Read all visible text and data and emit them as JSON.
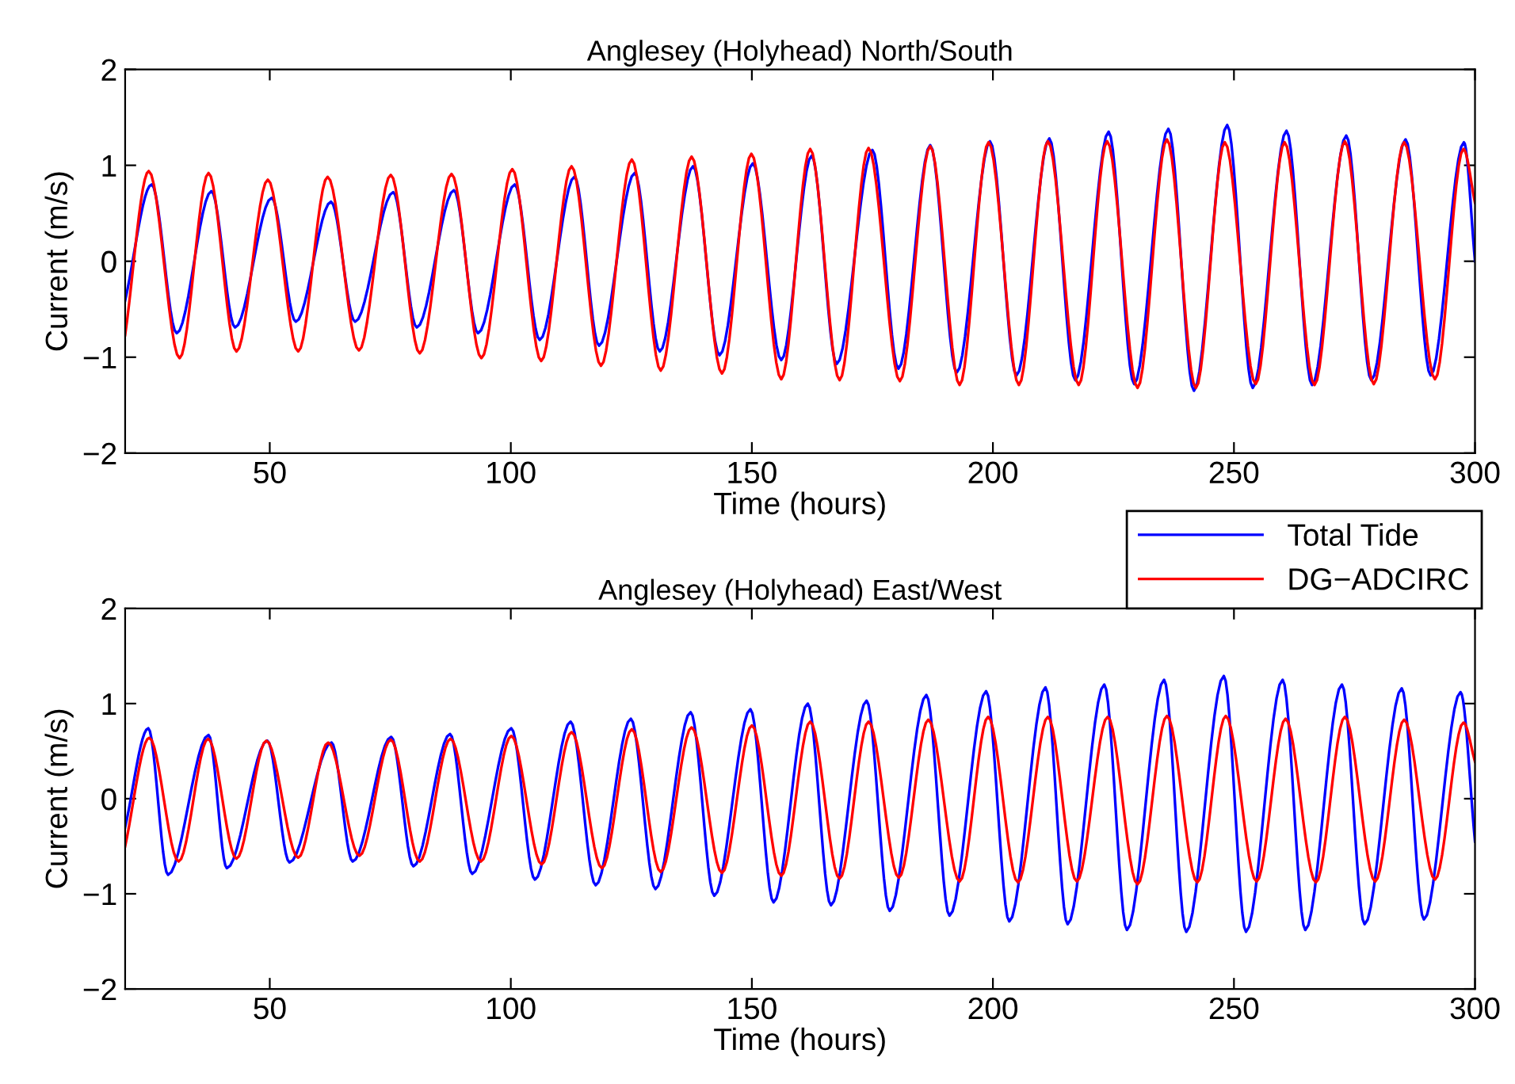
{
  "chart_data": [
    {
      "type": "line",
      "title": "Anglesey (Holyhead) North/South",
      "xlabel": "Time (hours)",
      "ylabel": "Current (m/s)",
      "xlim": [
        20,
        300
      ],
      "ylim": [
        -2,
        2
      ],
      "xticks": [
        50,
        100,
        150,
        200,
        250,
        300
      ],
      "yticks": [
        -2,
        -1,
        0,
        1,
        2
      ],
      "grid": false,
      "legend": false,
      "series": [
        {
          "color": "#0000ff",
          "x": [
            20,
            25.5,
            30.7,
            37.9,
            42.8,
            50.4,
            55.4,
            62.7,
            67.7,
            75.6,
            80.5,
            88.2,
            93.2,
            100.8,
            106.0,
            113.2,
            118.3,
            125.7,
            130.9,
            137.8,
            143.3,
            150.2,
            156.1,
            162.4,
            167.6,
            175.0,
            180.4,
            187.0,
            192.5,
            199.4,
            204.9,
            211.7,
            217.1,
            224.0,
            229.3,
            236.4,
            241.7,
            248.6,
            253.9,
            260.9,
            266.2,
            273.3,
            278.5,
            285.6,
            290.8,
            297.7,
            300
          ],
          "values": [
            -0.41,
            0.8,
            -0.75,
            0.73,
            -0.69,
            0.66,
            -0.63,
            0.62,
            -0.63,
            0.72,
            -0.69,
            0.74,
            -0.75,
            0.8,
            -0.82,
            0.88,
            -0.88,
            0.92,
            -0.94,
            0.99,
            -0.98,
            1.02,
            -1.03,
            1.1,
            -1.07,
            1.16,
            -1.12,
            1.21,
            -1.16,
            1.25,
            -1.19,
            1.28,
            -1.24,
            1.35,
            -1.28,
            1.38,
            -1.35,
            1.42,
            -1.32,
            1.36,
            -1.29,
            1.31,
            -1.24,
            1.27,
            -1.19,
            1.24,
            0.0
          ]
        },
        {
          "color": "#ff0000",
          "x": [
            20,
            24.9,
            31.3,
            37.3,
            43.1,
            49.6,
            55.9,
            62.0,
            68.5,
            75.1,
            81.1,
            87.7,
            93.9,
            100.3,
            106.3,
            112.6,
            118.7,
            125.1,
            131.1,
            137.5,
            143.8,
            149.9,
            156.1,
            162.1,
            168.2,
            174.2,
            180.7,
            187.0,
            193.1,
            199.1,
            205.4,
            211.4,
            217.8,
            223.7,
            230.0,
            236.1,
            242.1,
            248.1,
            254.5,
            260.5,
            266.7,
            273.0,
            279.0,
            285.3,
            291.7,
            297.6,
            300
          ],
          "values": [
            -0.77,
            0.94,
            -1.01,
            0.92,
            -0.94,
            0.85,
            -0.94,
            0.88,
            -0.93,
            0.9,
            -0.96,
            0.91,
            -1.01,
            0.96,
            -1.04,
            0.99,
            -1.09,
            1.06,
            -1.14,
            1.09,
            -1.17,
            1.12,
            -1.23,
            1.17,
            -1.24,
            1.18,
            -1.25,
            1.2,
            -1.29,
            1.24,
            -1.29,
            1.25,
            -1.29,
            1.25,
            -1.32,
            1.27,
            -1.32,
            1.24,
            -1.28,
            1.24,
            -1.29,
            1.25,
            -1.28,
            1.24,
            -1.23,
            1.17,
            0.61
          ]
        }
      ]
    },
    {
      "type": "line",
      "title": "Anglesey (Holyhead) East/West",
      "xlabel": "Time (hours)",
      "ylabel": "Current (m/s)",
      "xlim": [
        20,
        300
      ],
      "ylim": [
        -2,
        2
      ],
      "xticks": [
        50,
        100,
        150,
        200,
        250,
        300
      ],
      "yticks": [
        -2,
        -1,
        0,
        1,
        2
      ],
      "grid": false,
      "legend": "top right",
      "series": [
        {
          "name": "Total Tide",
          "color": "#0000ff",
          "x": [
            20,
            24.8,
            28.9,
            37.3,
            41.1,
            49.5,
            54.1,
            62.8,
            67.2,
            75.2,
            79.8,
            87.4,
            92.0,
            100.1,
            105.0,
            112.4,
            117.6,
            124.9,
            130.0,
            137.3,
            142.2,
            149.7,
            154.5,
            161.6,
            166.4,
            173.8,
            178.6,
            186.2,
            191.0,
            198.6,
            203.4,
            210.9,
            215.5,
            223.1,
            227.8,
            235.5,
            240.1,
            247.9,
            252.5,
            260.1,
            264.8,
            272.4,
            277.1,
            284.8,
            289.4,
            297.0,
            300
          ],
          "values": [
            -0.3,
            0.74,
            -0.8,
            0.67,
            -0.73,
            0.61,
            -0.67,
            0.59,
            -0.66,
            0.65,
            -0.71,
            0.68,
            -0.79,
            0.74,
            -0.85,
            0.81,
            -0.91,
            0.84,
            -0.95,
            0.91,
            -1.02,
            0.94,
            -1.09,
            1.0,
            -1.12,
            1.03,
            -1.18,
            1.09,
            -1.23,
            1.13,
            -1.29,
            1.17,
            -1.32,
            1.2,
            -1.38,
            1.25,
            -1.4,
            1.29,
            -1.4,
            1.25,
            -1.38,
            1.2,
            -1.32,
            1.16,
            -1.27,
            1.12,
            -0.45
          ]
        },
        {
          "name": "DG−ADCIRC",
          "color": "#ff0000",
          "x": [
            20,
            25.0,
            31.1,
            37.2,
            43.1,
            49.3,
            55.9,
            62.1,
            68.6,
            75.1,
            81.1,
            87.5,
            93.8,
            100.1,
            106.4,
            112.6,
            118.9,
            125.1,
            131.1,
            137.5,
            143.8,
            150.0,
            156.1,
            162.1,
            168.2,
            174.2,
            180.5,
            186.6,
            193.1,
            199.0,
            205.2,
            211.4,
            217.4,
            223.8,
            230.0,
            236.1,
            242.4,
            248.3,
            254.7,
            260.7,
            267.0,
            273.0,
            279.3,
            285.3,
            291.7,
            297.6,
            300
          ],
          "values": [
            -0.5,
            0.64,
            -0.66,
            0.63,
            -0.63,
            0.61,
            -0.62,
            0.59,
            -0.6,
            0.62,
            -0.66,
            0.63,
            -0.66,
            0.66,
            -0.69,
            0.7,
            -0.73,
            0.73,
            -0.77,
            0.75,
            -0.78,
            0.77,
            -0.81,
            0.81,
            -0.84,
            0.81,
            -0.83,
            0.83,
            -0.87,
            0.86,
            -0.88,
            0.86,
            -0.87,
            0.86,
            -0.9,
            0.87,
            -0.88,
            0.87,
            -0.87,
            0.84,
            -0.88,
            0.86,
            -0.87,
            0.83,
            -0.85,
            0.8,
            0.39
          ]
        }
      ]
    }
  ]
}
